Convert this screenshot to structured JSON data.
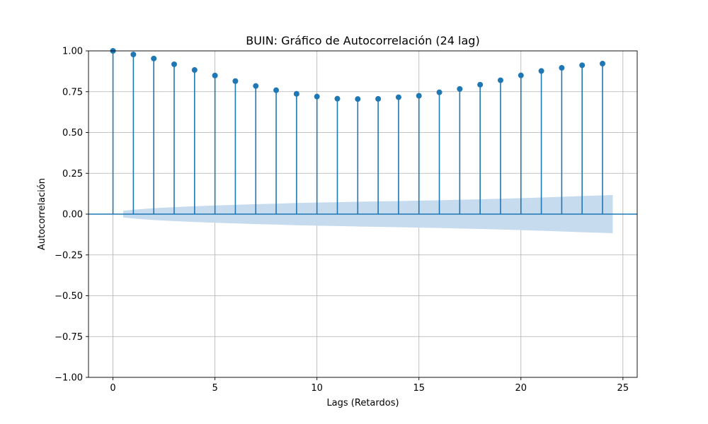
{
  "chart_data": {
    "type": "scatter",
    "subtype": "stem-autocorrelation",
    "title": "BUIN: Gráfico de Autocorrelación (24 lag)",
    "xlabel": "Lags (Retardos)",
    "ylabel": "Autocorrelación",
    "xlim": [
      -1.2,
      25.7
    ],
    "ylim": [
      -1.0,
      1.0
    ],
    "xticks": [
      0,
      5,
      10,
      15,
      20,
      25
    ],
    "yticks": [
      -1.0,
      -0.75,
      -0.5,
      -0.25,
      0.0,
      0.25,
      0.5,
      0.75,
      1.0
    ],
    "xtick_labels": [
      "0",
      "5",
      "10",
      "15",
      "20",
      "25"
    ],
    "ytick_labels": [
      "−1.00",
      "−0.75",
      "−0.50",
      "−0.25",
      "0.00",
      "0.25",
      "0.50",
      "0.75",
      "1.00"
    ],
    "grid": true,
    "lags": [
      0,
      1,
      2,
      3,
      4,
      5,
      6,
      7,
      8,
      9,
      10,
      11,
      12,
      13,
      14,
      15,
      16,
      17,
      18,
      19,
      20,
      21,
      22,
      23,
      24
    ],
    "values": [
      1.0,
      0.978,
      0.953,
      0.918,
      0.883,
      0.849,
      0.815,
      0.785,
      0.759,
      0.737,
      0.72,
      0.707,
      0.705,
      0.706,
      0.716,
      0.725,
      0.746,
      0.767,
      0.793,
      0.82,
      0.85,
      0.877,
      0.896,
      0.912,
      0.922
    ],
    "confidence_band": {
      "x": [
        0.5,
        1,
        2,
        3,
        4,
        5,
        6,
        7,
        8,
        9,
        10,
        11,
        12,
        13,
        14,
        15,
        16,
        17,
        18,
        19,
        20,
        21,
        22,
        23,
        24,
        24.5
      ],
      "halfwidth": [
        0.02,
        0.027,
        0.036,
        0.043,
        0.048,
        0.053,
        0.057,
        0.061,
        0.064,
        0.068,
        0.071,
        0.073,
        0.076,
        0.078,
        0.08,
        0.083,
        0.085,
        0.088,
        0.091,
        0.094,
        0.098,
        0.102,
        0.106,
        0.111,
        0.115,
        0.117
      ]
    },
    "colors": {
      "stem": "#1f77b4",
      "band": "#c6dbee",
      "grid": "#b0b0b0",
      "axis": "#000000"
    }
  }
}
